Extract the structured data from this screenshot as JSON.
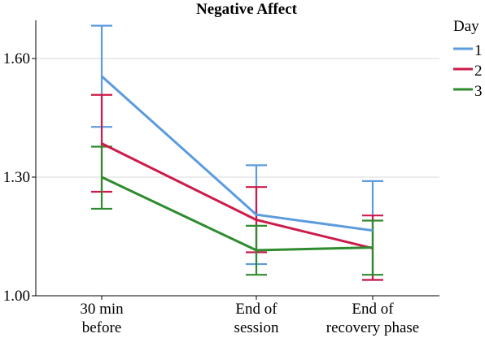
{
  "chart_data": {
    "type": "line",
    "title": "Negative Affect",
    "xlabel": "",
    "ylabel": "",
    "categories": [
      [
        "30 min",
        "before"
      ],
      [
        "End of",
        "session"
      ],
      [
        "End of",
        "recovery phase"
      ]
    ],
    "ylim": [
      1.0,
      1.7
    ],
    "yticks": [
      1.0,
      1.3,
      1.6
    ],
    "ytick_labels": [
      "1.00",
      "1.30",
      "1.60"
    ],
    "grid": "horizontal",
    "legend": {
      "title": "Day",
      "position": "top-right"
    },
    "series": [
      {
        "name": "1",
        "color": "#5b9bde",
        "values": [
          1.555,
          1.205,
          1.165
        ],
        "error_low": [
          1.427,
          1.08,
          1.04
        ],
        "error_high": [
          1.683,
          1.33,
          1.29
        ]
      },
      {
        "name": "2",
        "color": "#cc1b4a",
        "values": [
          1.385,
          1.192,
          1.12
        ],
        "error_low": [
          1.263,
          1.11,
          1.04
        ],
        "error_high": [
          1.508,
          1.275,
          1.203
        ]
      },
      {
        "name": "3",
        "color": "#2e8b2e",
        "values": [
          1.3,
          1.115,
          1.122
        ],
        "error_low": [
          1.22,
          1.053,
          1.053
        ],
        "error_high": [
          1.377,
          1.177,
          1.19
        ]
      }
    ]
  }
}
